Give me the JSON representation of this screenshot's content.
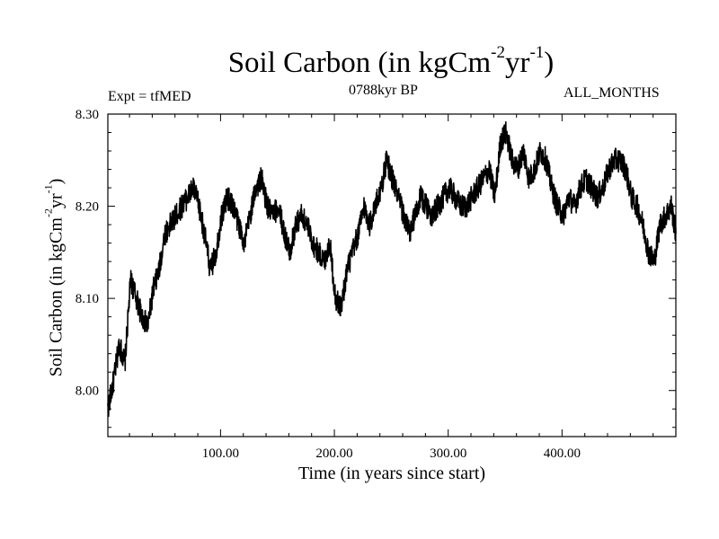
{
  "chart_data": {
    "type": "line",
    "title": "Soil Carbon (in kgCm",
    "title_sup1": "-2",
    "title_mid": "yr",
    "title_sup2": "-1",
    "title_end": ")",
    "subtitle_left": "Expt = tfMED",
    "subtitle_center": "0788kyr BP",
    "subtitle_right": "ALL_MONTHS",
    "xlabel": "Time (in years since start)",
    "ylabel": "Soil Carbon (in kgCm",
    "ylabel_sup1": "-2",
    "ylabel_mid": "yr",
    "ylabel_sup2": "-1",
    "ylabel_end": ")",
    "xlim": [
      1,
      500
    ],
    "ylim": [
      7.95,
      8.3
    ],
    "x_ticks": [
      100,
      200,
      300,
      400
    ],
    "x_tick_labels": [
      "100.00",
      "200.00",
      "300.00",
      "400.00"
    ],
    "y_ticks": [
      8.0,
      8.1,
      8.2,
      8.3
    ],
    "y_tick_labels": [
      "8.00",
      "8.10",
      "8.20",
      "8.30"
    ],
    "color": "#000000",
    "series": [
      {
        "name": "Soil Carbon",
        "x": [
          1,
          6,
          11,
          16,
          21,
          26,
          31,
          36,
          41,
          46,
          51,
          56,
          61,
          66,
          71,
          76,
          81,
          86,
          91,
          96,
          101,
          106,
          111,
          116,
          121,
          126,
          131,
          136,
          141,
          146,
          151,
          156,
          161,
          166,
          171,
          176,
          181,
          186,
          191,
          196,
          201,
          206,
          211,
          216,
          221,
          226,
          231,
          236,
          241,
          246,
          251,
          256,
          261,
          266,
          271,
          276,
          281,
          286,
          291,
          296,
          301,
          306,
          311,
          316,
          321,
          326,
          331,
          336,
          341,
          346,
          351,
          356,
          361,
          366,
          371,
          376,
          381,
          386,
          391,
          396,
          401,
          406,
          411,
          416,
          421,
          426,
          431,
          436,
          441,
          446,
          451,
          456,
          461,
          466,
          471,
          476,
          481,
          486,
          491,
          496,
          500
        ],
        "values": [
          7.98,
          8.01,
          8.05,
          8.03,
          8.12,
          8.1,
          8.08,
          8.07,
          8.11,
          8.13,
          8.17,
          8.18,
          8.19,
          8.2,
          8.21,
          8.22,
          8.2,
          8.17,
          8.13,
          8.15,
          8.19,
          8.21,
          8.2,
          8.18,
          8.16,
          8.19,
          8.22,
          8.23,
          8.2,
          8.19,
          8.2,
          8.17,
          8.15,
          8.18,
          8.19,
          8.18,
          8.16,
          8.15,
          8.14,
          8.16,
          8.1,
          8.09,
          8.13,
          8.15,
          8.17,
          8.2,
          8.18,
          8.2,
          8.22,
          8.25,
          8.23,
          8.21,
          8.19,
          8.17,
          8.19,
          8.21,
          8.2,
          8.19,
          8.2,
          8.21,
          8.22,
          8.21,
          8.2,
          8.2,
          8.21,
          8.22,
          8.23,
          8.24,
          8.21,
          8.27,
          8.28,
          8.25,
          8.24,
          8.26,
          8.23,
          8.24,
          8.26,
          8.25,
          8.22,
          8.2,
          8.19,
          8.21,
          8.2,
          8.22,
          8.23,
          8.22,
          8.21,
          8.22,
          8.24,
          8.25,
          8.25,
          8.24,
          8.21,
          8.2,
          8.18,
          8.15,
          8.14,
          8.18,
          8.19,
          8.2,
          8.17
        ]
      }
    ]
  }
}
